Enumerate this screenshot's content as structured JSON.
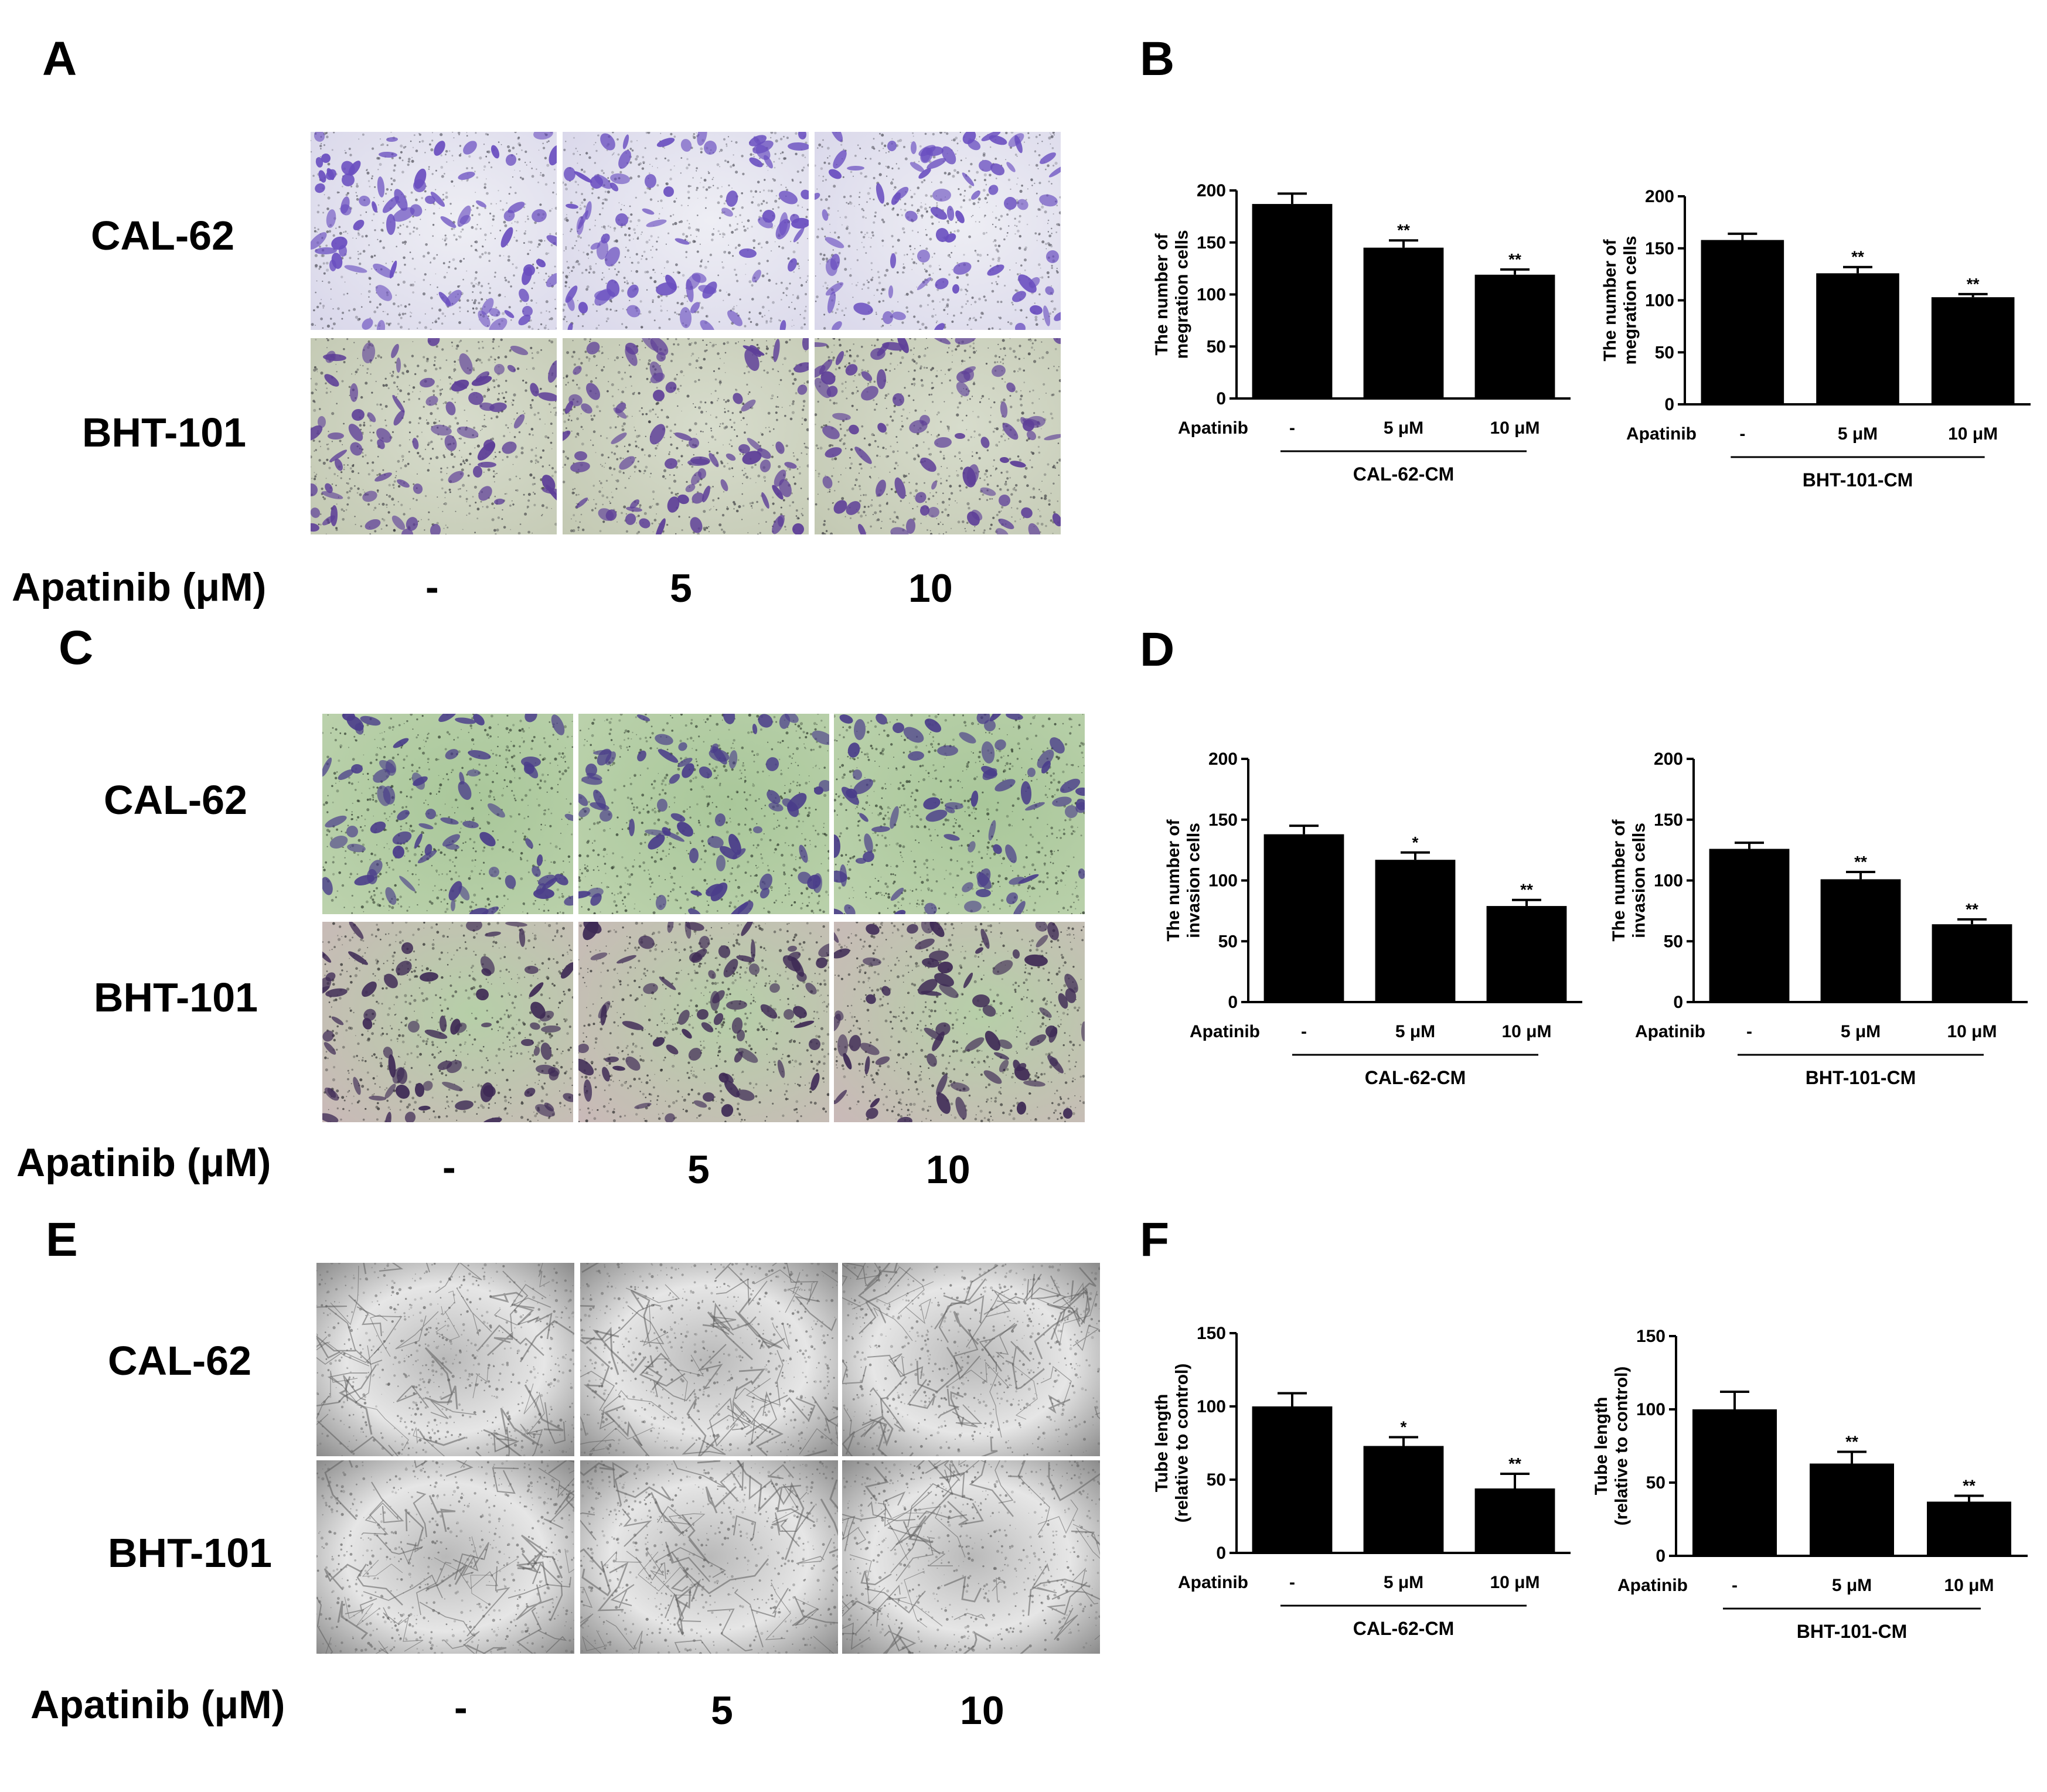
{
  "panel_labels": {
    "A": "A",
    "B": "B",
    "C": "C",
    "D": "D",
    "E": "E",
    "F": "F"
  },
  "cell_lines": [
    "CAL-62",
    "BHT-101"
  ],
  "treatment_label": "Apatinib (μM)",
  "doses": [
    "-",
    "5",
    "10"
  ],
  "micrograph_panels": [
    {
      "id": "A",
      "stain": "crystal violet",
      "colors": {
        "bg": "#eeeef4",
        "bg2": "#d9d7ea",
        "cell": "#6a4fc0",
        "dots": "#55555f"
      }
    },
    {
      "id": "A2",
      "stain": "crystal violet",
      "colors": {
        "bg": "#d7dccc",
        "bg2": "#c3c9b3",
        "cell": "#5e3f98",
        "dots": "#3b3b40"
      }
    },
    {
      "id": "C",
      "stain": "crystal violet",
      "colors": {
        "bg": "#a9c79a",
        "bg2": "#bcd2ad",
        "cell": "#4a3d8a",
        "dots": "#2f3a2d"
      }
    },
    {
      "id": "C2",
      "stain": "crystal violet",
      "colors": {
        "bg": "#b6cfa8",
        "bg2": "#c9b9b8",
        "cell": "#3e2a55",
        "dots": "#2c2c2c"
      }
    },
    {
      "id": "E",
      "stain": "brightfield",
      "colors": {
        "bg": "#e6e6e6",
        "bg2": "#8c8c8c",
        "cell": "#5c5c5c",
        "dots": "#6a6a6a"
      }
    }
  ],
  "chart_data": [
    {
      "panel": "B",
      "type": "bar",
      "title": "",
      "ylabel": [
        "The number of",
        "megration cells"
      ],
      "categories": [
        "-",
        "5 μM",
        "10 μM"
      ],
      "row_label": "Apatinib",
      "group_label": "CAL-62-CM",
      "values": [
        187,
        145,
        119
      ],
      "errors": [
        10,
        7,
        5
      ],
      "significance": [
        "",
        "**",
        "**"
      ],
      "ylim": [
        0,
        200
      ],
      "yticks": [
        0,
        50,
        100,
        150,
        200
      ]
    },
    {
      "panel": "B",
      "type": "bar",
      "title": "",
      "ylabel": [
        "The number of",
        "megration cells"
      ],
      "categories": [
        "-",
        "5 μM",
        "10 μM"
      ],
      "row_label": "Apatinib",
      "group_label": "BHT-101-CM",
      "values": [
        158,
        126,
        103
      ],
      "errors": [
        6,
        6,
        3
      ],
      "significance": [
        "",
        "**",
        "**"
      ],
      "ylim": [
        0,
        200
      ],
      "yticks": [
        0,
        50,
        100,
        150,
        200
      ]
    },
    {
      "panel": "D",
      "type": "bar",
      "title": "",
      "ylabel": [
        "The number of",
        "invasion cells"
      ],
      "categories": [
        "-",
        "5 μM",
        "10 μM"
      ],
      "row_label": "Apatinib",
      "group_label": "CAL-62-CM",
      "values": [
        138,
        117,
        79
      ],
      "errors": [
        7,
        6,
        5
      ],
      "significance": [
        "",
        "*",
        "**"
      ],
      "ylim": [
        0,
        200
      ],
      "yticks": [
        0,
        50,
        100,
        150,
        200
      ]
    },
    {
      "panel": "D",
      "type": "bar",
      "title": "",
      "ylabel": [
        "The number of",
        "invasion cells"
      ],
      "categories": [
        "-",
        "5 μM",
        "10 μM"
      ],
      "row_label": "Apatinib",
      "group_label": "BHT-101-CM",
      "values": [
        126,
        101,
        64
      ],
      "errors": [
        5,
        6,
        4
      ],
      "significance": [
        "",
        "**",
        "**"
      ],
      "ylim": [
        0,
        200
      ],
      "yticks": [
        0,
        50,
        100,
        150,
        200
      ]
    },
    {
      "panel": "F",
      "type": "bar",
      "title": "",
      "ylabel": [
        "Tube  length",
        "(relative to control)"
      ],
      "categories": [
        "-",
        "5 μM",
        "10 μM"
      ],
      "row_label": "Apatinib",
      "group_label": "CAL-62-CM",
      "values": [
        100,
        73,
        44
      ],
      "errors": [
        9,
        6,
        10
      ],
      "significance": [
        "",
        "*",
        "**"
      ],
      "ylim": [
        0,
        150
      ],
      "yticks": [
        0,
        50,
        100,
        150
      ]
    },
    {
      "panel": "F",
      "type": "bar",
      "title": "",
      "ylabel": [
        "Tube  length",
        "(relative to control)"
      ],
      "categories": [
        "-",
        "5 μM",
        "10 μM"
      ],
      "row_label": "Apatinib",
      "group_label": "BHT-101-CM",
      "values": [
        100,
        63,
        37
      ],
      "errors": [
        12,
        8,
        4
      ],
      "significance": [
        "",
        "**",
        "**"
      ],
      "ylim": [
        0,
        150
      ],
      "yticks": [
        0,
        50,
        100,
        150
      ]
    }
  ]
}
